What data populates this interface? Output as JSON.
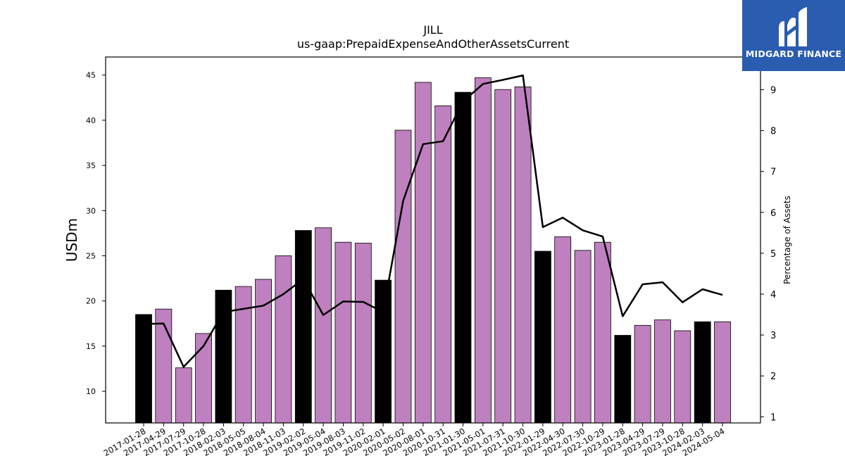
{
  "brand": {
    "name": "MIDGARD FINANCE",
    "logo_icon": "midgard-m-logo-icon",
    "background": "#2a5caf"
  },
  "chart_data": {
    "type": "bar",
    "title": "JILL",
    "subtitle": "us-gaap:PrepaidExpenseAndOtherAssetsCurrent",
    "ylabel": "USDm",
    "y2label": "Percentage of Assets",
    "ylim": [
      6.5,
      47.0
    ],
    "y2lim": [
      0.85,
      9.8
    ],
    "yticks": [
      10,
      15,
      20,
      25,
      30,
      35,
      40,
      45
    ],
    "y2ticks": [
      1,
      2,
      3,
      4,
      5,
      6,
      7,
      8,
      9
    ],
    "grid": false,
    "colors": {
      "bar_default": "#bf80bf",
      "bar_highlight": "#000000",
      "line": "#000000"
    },
    "categories": [
      "2017-01-28",
      "2017-04-29",
      "2017-07-29",
      "2017-10-28",
      "2018-02-03",
      "2018-05-05",
      "2018-08-04",
      "2018-11-03",
      "2019-02-02",
      "2019-05-04",
      "2019-08-03",
      "2019-11-02",
      "2020-02-01",
      "2020-05-02",
      "2020-08-01",
      "2020-10-31",
      "2021-01-30",
      "2021-05-01",
      "2021-07-31",
      "2021-10-30",
      "2022-01-29",
      "2022-04-30",
      "2022-07-30",
      "2022-10-29",
      "2023-01-28",
      "2023-04-29",
      "2023-07-29",
      "2023-10-28",
      "2024-02-03",
      "2024-05-04"
    ],
    "series": [
      {
        "kind": "bar",
        "axis": "left",
        "values": [
          18.5,
          19.1,
          12.6,
          16.4,
          21.2,
          21.6,
          22.4,
          25.0,
          27.8,
          28.1,
          26.5,
          26.4,
          22.3,
          38.9,
          44.2,
          41.6,
          43.1,
          44.7,
          43.4,
          43.7,
          25.5,
          27.1,
          25.6,
          26.5,
          16.2,
          17.3,
          17.9,
          16.7,
          17.7,
          17.7
        ],
        "highlight": [
          true,
          false,
          false,
          false,
          true,
          false,
          false,
          false,
          true,
          false,
          false,
          false,
          true,
          false,
          false,
          false,
          true,
          false,
          false,
          false,
          true,
          false,
          false,
          false,
          true,
          false,
          false,
          false,
          true,
          false
        ]
      },
      {
        "kind": "line",
        "axis": "right",
        "values": [
          3.27,
          3.28,
          2.22,
          2.73,
          3.56,
          3.64,
          3.72,
          4.0,
          4.37,
          3.49,
          3.82,
          3.81,
          3.56,
          6.28,
          7.67,
          7.74,
          8.71,
          9.14,
          9.24,
          9.35,
          5.64,
          5.87,
          5.56,
          5.41,
          3.46,
          4.24,
          4.29,
          3.8,
          4.12,
          3.98
        ]
      }
    ]
  }
}
